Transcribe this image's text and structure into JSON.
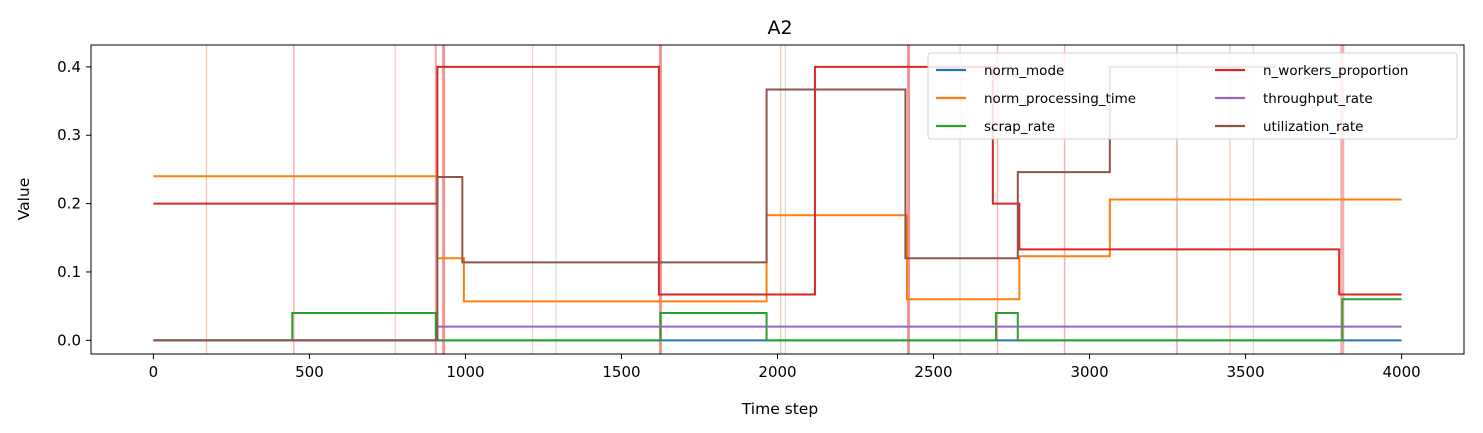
{
  "chart_data": {
    "type": "line",
    "title": "A2",
    "xlabel": "Time step",
    "ylabel": "Value",
    "xlim": [
      -200,
      4200
    ],
    "ylim": [
      -0.02,
      0.432
    ],
    "xticks": [
      0,
      500,
      1000,
      1500,
      2000,
      2500,
      3000,
      3500,
      4000
    ],
    "yticks": [
      0.0,
      0.1,
      0.2,
      0.3,
      0.4
    ],
    "xtick_labels": [
      "0",
      "500",
      "1000",
      "1500",
      "2000",
      "2500",
      "3000",
      "3500",
      "4000"
    ],
    "ytick_labels": [
      "0.0",
      "0.1",
      "0.2",
      "0.3",
      "0.4"
    ],
    "legend": {
      "location": "top-right",
      "columns": 2
    },
    "series": [
      {
        "name": "norm_mode",
        "color": "#1f77b4",
        "points": [
          [
            0,
            0.0
          ],
          [
            4000,
            0.0
          ]
        ]
      },
      {
        "name": "norm_processing_time",
        "color": "#ff7f0e",
        "points": [
          [
            0,
            0.24
          ],
          [
            910,
            0.24
          ],
          [
            910,
            0.12
          ],
          [
            995,
            0.12
          ],
          [
            995,
            0.057
          ],
          [
            1965,
            0.057
          ],
          [
            1965,
            0.183
          ],
          [
            2415,
            0.183
          ],
          [
            2415,
            0.06
          ],
          [
            2775,
            0.06
          ],
          [
            2775,
            0.123
          ],
          [
            3065,
            0.123
          ],
          [
            3065,
            0.206
          ],
          [
            4000,
            0.206
          ]
        ]
      },
      {
        "name": "scrap_rate",
        "color": "#2ca02c",
        "points": [
          [
            0,
            0.0
          ],
          [
            445,
            0.0
          ],
          [
            445,
            0.04
          ],
          [
            905,
            0.04
          ],
          [
            905,
            0.0
          ],
          [
            1625,
            0.0
          ],
          [
            1625,
            0.04
          ],
          [
            1965,
            0.04
          ],
          [
            1965,
            0.0
          ],
          [
            2700,
            0.0
          ],
          [
            2700,
            0.04
          ],
          [
            2770,
            0.04
          ],
          [
            2770,
            0.0
          ],
          [
            3810,
            0.0
          ],
          [
            3810,
            0.06
          ],
          [
            4000,
            0.06
          ]
        ]
      },
      {
        "name": "n_workers_proportion",
        "color": "#d62728",
        "points": [
          [
            0,
            0.2
          ],
          [
            910,
            0.2
          ],
          [
            910,
            0.4
          ],
          [
            1620,
            0.4
          ],
          [
            1620,
            0.067
          ],
          [
            2120,
            0.067
          ],
          [
            2120,
            0.4
          ],
          [
            2690,
            0.4
          ],
          [
            2690,
            0.2
          ],
          [
            2775,
            0.2
          ],
          [
            2775,
            0.133
          ],
          [
            3800,
            0.133
          ],
          [
            3800,
            0.067
          ],
          [
            4000,
            0.067
          ]
        ]
      },
      {
        "name": "throughput_rate",
        "color": "#9467bd",
        "points": [
          [
            0,
            0.0
          ],
          [
            910,
            0.0
          ],
          [
            910,
            0.02
          ],
          [
            4000,
            0.02
          ]
        ]
      },
      {
        "name": "utilization_rate",
        "color": "#8c564b",
        "points": [
          [
            0,
            0.0
          ],
          [
            910,
            0.0
          ],
          [
            910,
            0.239
          ],
          [
            990,
            0.239
          ],
          [
            990,
            0.114
          ],
          [
            1965,
            0.114
          ],
          [
            1965,
            0.367
          ],
          [
            2410,
            0.367
          ],
          [
            2410,
            0.12
          ],
          [
            2770,
            0.12
          ],
          [
            2770,
            0.246
          ],
          [
            3065,
            0.246
          ],
          [
            3065,
            0.4
          ],
          [
            3600,
            0.4
          ]
        ]
      }
    ],
    "vertical_markers": [
      {
        "x": 170,
        "color": "#f4b6a0",
        "width": 1.2
      },
      {
        "x": 450,
        "color": "#f4a6a6",
        "width": 1.5
      },
      {
        "x": 775,
        "color": "#f4c8b8",
        "width": 1.2
      },
      {
        "x": 905,
        "color": "#f49a9a",
        "width": 2
      },
      {
        "x": 930,
        "color": "#f08080",
        "width": 3
      },
      {
        "x": 1215,
        "color": "#f4c8b8",
        "width": 1.2
      },
      {
        "x": 1290,
        "color": "#c8e0c0",
        "width": 1.2
      },
      {
        "x": 1625,
        "color": "#f08080",
        "width": 3
      },
      {
        "x": 2010,
        "color": "#e0c8b0",
        "width": 1.5
      },
      {
        "x": 2025,
        "color": "#c8d8c0",
        "width": 1.2
      },
      {
        "x": 2420,
        "color": "#f08080",
        "width": 3
      },
      {
        "x": 2585,
        "color": "#c8e0c0",
        "width": 1.2
      },
      {
        "x": 2705,
        "color": "#f4a6a6",
        "width": 1.5
      },
      {
        "x": 2920,
        "color": "#f4a6a6",
        "width": 1.5
      },
      {
        "x": 3280,
        "color": "#d8c0b0",
        "width": 2
      },
      {
        "x": 3450,
        "color": "#f4b6a0",
        "width": 1.2
      },
      {
        "x": 3525,
        "color": "#c8e0c0",
        "width": 1.2
      },
      {
        "x": 3810,
        "color": "#f4a0a0",
        "width": 4
      }
    ]
  }
}
